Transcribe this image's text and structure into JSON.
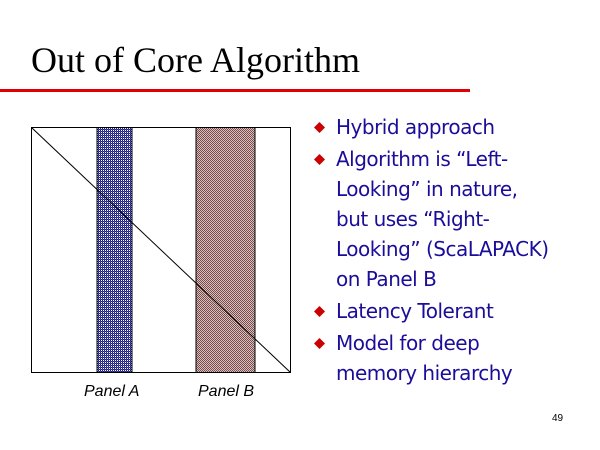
{
  "slide": {
    "title": "Out of Core Algorithm",
    "page_number": "49"
  },
  "figure": {
    "panels": [
      {
        "label": "Panel A"
      },
      {
        "label": "Panel B"
      }
    ]
  },
  "bullets": [
    {
      "text": "Hybrid approach"
    },
    {
      "text": "Algorithm is “Left-Looking” in nature, but uses “Right-Looking” (ScaLAPACK) on Panel B"
    },
    {
      "text": "Latency Tolerant"
    },
    {
      "text": "Model for deep memory hierarchy"
    }
  ],
  "colors": {
    "title_rule": "#e00000",
    "bullet_text": "#1a0d99",
    "bullet_marker": "#cc0000",
    "panel_a_fill": "#2a2a8a",
    "panel_b_fill": "#9a6a6a"
  }
}
